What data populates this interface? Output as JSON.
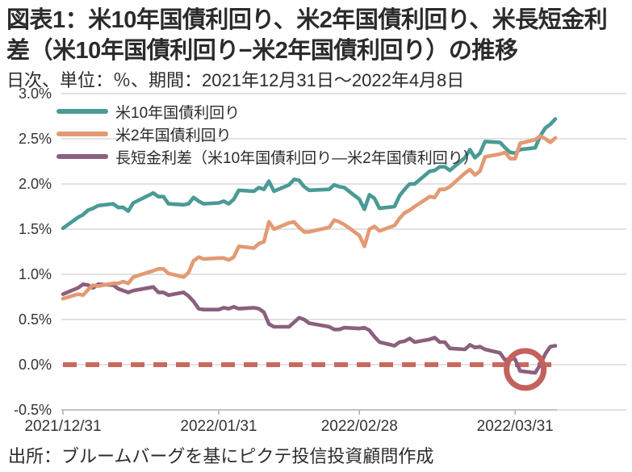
{
  "header": {
    "title_line1": "図表1：米10年国債利回り、米2年国債利回り、米長短金利",
    "title_line2": "差（米10年国債利回り−米2年国債利回り）の推移",
    "subtitle": "日次、単位：％、期間：2021年12月31日～2022年4月8日"
  },
  "footer": {
    "source": "出所：ブルームバーグを基にピクテ投信投資顧問作成"
  },
  "colors": {
    "us10y": "#4a9a95",
    "us2y": "#e39a73",
    "spread": "#8b5f7e",
    "zero_dashed_line": "#c8685f",
    "annotation_circle": "#c4615c",
    "gridline": "#d9d9d9",
    "axis": "#b3b3b3",
    "text": "#2b2b2b"
  },
  "chart_data": {
    "type": "line",
    "title": "米10年国債利回り、米2年国債利回り、米長短金利差の推移",
    "unit": "%",
    "period": "2021/12/31 - 2022/4/8",
    "grid": "horizontal",
    "legend_position": "top-left",
    "ylim": [
      -0.5,
      3.0
    ],
    "ytick_labels": [
      "3.0%",
      "2.5%",
      "2.0%",
      "1.5%",
      "1.0%",
      "0.5%",
      "0.0%",
      "-0.5%"
    ],
    "ytick_values": [
      3.0,
      2.5,
      2.0,
      1.5,
      1.0,
      0.5,
      0.0,
      -0.5
    ],
    "xtick_labels": [
      "2021/12/31",
      "2022/01/31",
      "2022/02/28",
      "2022/03/31"
    ],
    "xtick_days": [
      0,
      31,
      59,
      90
    ],
    "dates": [
      "12/31",
      "1/3",
      "1/4",
      "1/5",
      "1/6",
      "1/7",
      "1/10",
      "1/11",
      "1/12",
      "1/13",
      "1/14",
      "1/18",
      "1/19",
      "1/20",
      "1/21",
      "1/24",
      "1/25",
      "1/26",
      "1/27",
      "1/28",
      "1/31",
      "2/1",
      "2/2",
      "2/3",
      "2/4",
      "2/7",
      "2/8",
      "2/9",
      "2/10",
      "2/11",
      "2/14",
      "2/15",
      "2/16",
      "2/17",
      "2/18",
      "2/22",
      "2/23",
      "2/24",
      "2/25",
      "2/28",
      "3/1",
      "3/2",
      "3/3",
      "3/4",
      "3/7",
      "3/8",
      "3/9",
      "3/10",
      "3/11",
      "3/14",
      "3/15",
      "3/16",
      "3/17",
      "3/18",
      "3/21",
      "3/22",
      "3/23",
      "3/24",
      "3/25",
      "3/28",
      "3/29",
      "3/30",
      "3/31",
      "4/1",
      "4/4",
      "4/5",
      "4/6",
      "4/7",
      "4/8"
    ],
    "days": [
      0,
      3,
      4,
      5,
      6,
      7,
      10,
      11,
      12,
      13,
      14,
      18,
      19,
      20,
      21,
      24,
      25,
      26,
      27,
      28,
      31,
      32,
      33,
      34,
      35,
      38,
      39,
      40,
      41,
      42,
      45,
      46,
      47,
      48,
      49,
      53,
      54,
      55,
      56,
      59,
      60,
      61,
      62,
      63,
      66,
      67,
      68,
      69,
      70,
      73,
      74,
      75,
      76,
      77,
      80,
      81,
      82,
      83,
      84,
      87,
      88,
      89,
      90,
      91,
      94,
      95,
      96,
      97,
      98
    ],
    "series": [
      {
        "key": "spread",
        "name": "長短金利差（米10年国債利回り―米2年国債利回り）",
        "color": "#8b5f7e",
        "values": [
          0.78,
          0.85,
          0.89,
          0.88,
          0.85,
          0.89,
          0.88,
          0.84,
          0.82,
          0.8,
          0.82,
          0.86,
          0.8,
          0.8,
          0.77,
          0.8,
          0.76,
          0.7,
          0.62,
          0.61,
          0.61,
          0.63,
          0.62,
          0.64,
          0.62,
          0.63,
          0.62,
          0.58,
          0.45,
          0.42,
          0.42,
          0.47,
          0.52,
          0.5,
          0.46,
          0.42,
          0.39,
          0.39,
          0.41,
          0.4,
          0.41,
          0.38,
          0.31,
          0.25,
          0.21,
          0.25,
          0.26,
          0.29,
          0.25,
          0.28,
          0.3,
          0.25,
          0.25,
          0.18,
          0.17,
          0.22,
          0.19,
          0.2,
          0.17,
          0.13,
          0.05,
          0.07,
          0.06,
          -0.07,
          -0.09,
          0.0,
          0.12,
          0.2,
          0.21
        ]
      },
      {
        "key": "us10y",
        "name": "米10年国債利回り",
        "color": "#4a9a95",
        "values": [
          1.51,
          1.63,
          1.66,
          1.71,
          1.73,
          1.76,
          1.78,
          1.74,
          1.74,
          1.7,
          1.79,
          1.9,
          1.86,
          1.86,
          1.78,
          1.77,
          1.78,
          1.85,
          1.81,
          1.78,
          1.79,
          1.81,
          1.78,
          1.83,
          1.93,
          1.92,
          1.96,
          1.94,
          2.03,
          1.92,
          1.99,
          2.05,
          2.04,
          1.97,
          1.93,
          1.94,
          1.99,
          1.97,
          1.96,
          1.83,
          1.72,
          1.88,
          1.84,
          1.73,
          1.75,
          1.87,
          1.94,
          2.0,
          2.0,
          2.14,
          2.15,
          2.19,
          2.19,
          2.15,
          2.29,
          2.38,
          2.29,
          2.34,
          2.47,
          2.46,
          2.4,
          2.35,
          2.34,
          2.38,
          2.4,
          2.53,
          2.62,
          2.66,
          2.72
        ]
      },
      {
        "key": "us2y",
        "name": "米2年国債利回り",
        "color": "#e39a73",
        "values": [
          0.73,
          0.78,
          0.77,
          0.83,
          0.88,
          0.87,
          0.9,
          0.9,
          0.92,
          0.9,
          0.97,
          1.04,
          1.06,
          1.06,
          1.01,
          0.97,
          1.02,
          1.15,
          1.19,
          1.17,
          1.18,
          1.18,
          1.16,
          1.19,
          1.31,
          1.29,
          1.34,
          1.36,
          1.58,
          1.5,
          1.57,
          1.58,
          1.52,
          1.47,
          1.47,
          1.52,
          1.6,
          1.58,
          1.55,
          1.43,
          1.31,
          1.5,
          1.53,
          1.48,
          1.54,
          1.62,
          1.68,
          1.71,
          1.75,
          1.86,
          1.85,
          1.94,
          1.94,
          1.97,
          2.12,
          2.16,
          2.1,
          2.14,
          2.3,
          2.33,
          2.35,
          2.28,
          2.28,
          2.45,
          2.49,
          2.53,
          2.5,
          2.46,
          2.51
        ]
      }
    ],
    "legend_order": [
      "us10y",
      "us2y",
      "spread"
    ],
    "zero_line": {
      "value": 0.0,
      "style": "dashed",
      "color": "#c8685f"
    },
    "annotation_circle": {
      "day": 92,
      "value": -0.07,
      "color": "#c4615c",
      "meaning": "spread dips below zero (curve inversion)"
    }
  }
}
